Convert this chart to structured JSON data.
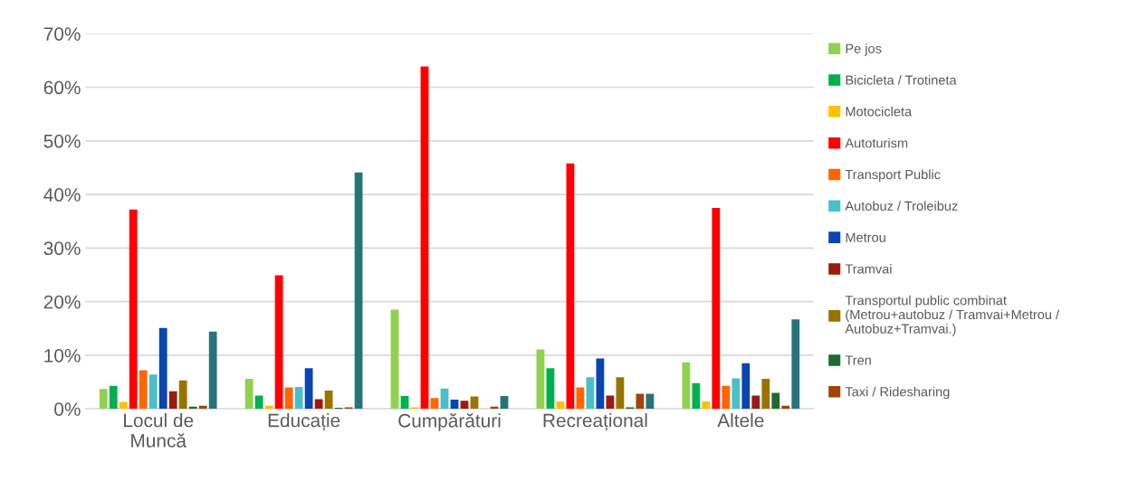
{
  "chart_data": {
    "type": "bar",
    "categories": [
      "Locul de\nMuncă",
      "Educație",
      "Cumpărături",
      "Recreațional",
      "Altele"
    ],
    "ylim": [
      0,
      70
    ],
    "yticks": [
      {
        "value": 0,
        "label": "0%"
      },
      {
        "value": 10,
        "label": "10%"
      },
      {
        "value": 20,
        "label": "20%"
      },
      {
        "value": 30,
        "label": "30%"
      },
      {
        "value": 40,
        "label": "40%"
      },
      {
        "value": 50,
        "label": "50%"
      },
      {
        "value": 60,
        "label": "60%"
      },
      {
        "value": 70,
        "label": "70%"
      }
    ],
    "grid": "y",
    "legend": "right",
    "series": [
      {
        "name": "Pe jos",
        "color": "#92d050",
        "values": [
          3.7,
          5.6,
          18.5,
          11.1,
          8.7
        ]
      },
      {
        "name": "Bicicleta / Trotineta",
        "color": "#00b050",
        "values": [
          4.3,
          2.5,
          2.4,
          7.6,
          4.8
        ]
      },
      {
        "name": "Motocicleta",
        "color": "#ffc000",
        "values": [
          1.3,
          0.6,
          0.3,
          1.4,
          1.4
        ]
      },
      {
        "name": "Autoturism",
        "color": "#ff0000",
        "values": [
          37.2,
          24.9,
          63.9,
          45.8,
          37.5
        ]
      },
      {
        "name": "Transport Public",
        "color": "#ff6600",
        "values": [
          7.2,
          4.0,
          2.0,
          4.0,
          4.3
        ]
      },
      {
        "name": "Autobuz / Troleibuz",
        "color": "#4bbfc8",
        "values": [
          6.4,
          4.1,
          3.8,
          5.9,
          5.7
        ]
      },
      {
        "name": "Metrou",
        "color": "#0a45b0",
        "values": [
          15.1,
          7.6,
          1.7,
          9.4,
          8.5
        ]
      },
      {
        "name": "Tramvai",
        "color": "#9b1b10",
        "values": [
          3.3,
          1.8,
          1.5,
          2.5,
          2.5
        ]
      },
      {
        "name": "Transportul public combinat\n(Metrou+autobuz / Tramvai+Metrou /\nAutobuz+Tramvai.)",
        "color": "#997300",
        "values": [
          5.3,
          3.4,
          2.3,
          5.9,
          5.6
        ]
      },
      {
        "name": "Tren",
        "color": "#1e6b32",
        "values": [
          0.4,
          0.2,
          0,
          0.3,
          3.0
        ]
      },
      {
        "name": "Taxi / Ridesharing",
        "color": "#a0440a",
        "values": [
          0.6,
          0.3,
          0.4,
          2.8,
          0.6
        ]
      },
      {
        "color": "#26747a",
        "values": [
          14.4,
          44.1,
          2.4,
          2.8,
          16.7
        ]
      }
    ]
  }
}
